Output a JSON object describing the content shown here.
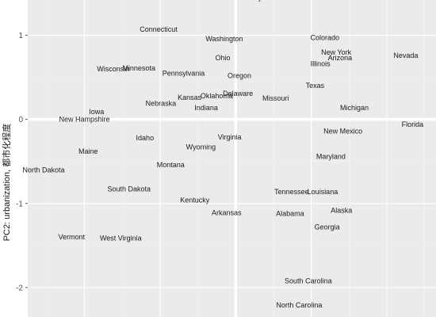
{
  "chart_data": {
    "type": "scatter",
    "title": "",
    "xlabel": "",
    "ylabel": "PC2: urbanization, 都市化程度",
    "xlim": [
      -2.75,
      2.65
    ],
    "ylim": [
      -2.35,
      1.42
    ],
    "yticks": [
      1,
      0,
      -1,
      -2
    ],
    "ytick_labels": [
      "1",
      "0",
      "-1",
      "-2"
    ],
    "x_gridlines": [
      -2,
      -1,
      0,
      1,
      2
    ],
    "x_minor_gridlines": [
      -2.5,
      -1.5,
      -0.5,
      0.5,
      1.5,
      2.5
    ],
    "y_minor_gridlines": [
      1.5,
      0.5,
      -0.5,
      -1.5
    ],
    "zero_lines": true,
    "grid": true,
    "background": "#ebebeb",
    "gridline_color": "#ffffff",
    "points": [
      {
        "label": "New Jersey",
        "x": 0.1,
        "y": 1.45
      },
      {
        "label": "Connecticut",
        "x": -1.02,
        "y": 1.07
      },
      {
        "label": "Washington",
        "x": -0.15,
        "y": 0.96
      },
      {
        "label": "Colorado",
        "x": 1.18,
        "y": 0.97
      },
      {
        "label": "New York",
        "x": 1.33,
        "y": 0.8
      },
      {
        "label": "Arizona",
        "x": 1.38,
        "y": 0.73
      },
      {
        "label": "Nevada",
        "x": 2.25,
        "y": 0.76
      },
      {
        "label": "Ohio",
        "x": -0.17,
        "y": 0.73
      },
      {
        "label": "Illinois",
        "x": 1.12,
        "y": 0.66
      },
      {
        "label": "Wisconsin",
        "x": -1.62,
        "y": 0.6
      },
      {
        "label": "Minnesota",
        "x": -1.28,
        "y": 0.61
      },
      {
        "label": "Pennsylvania",
        "x": -0.69,
        "y": 0.55
      },
      {
        "label": "Oregon",
        "x": 0.05,
        "y": 0.52
      },
      {
        "label": "Texas",
        "x": 1.05,
        "y": 0.4
      },
      {
        "label": "Delaware",
        "x": 0.03,
        "y": 0.31
      },
      {
        "label": "Oklahoma",
        "x": -0.25,
        "y": 0.28
      },
      {
        "label": "Kansas",
        "x": -0.61,
        "y": 0.26
      },
      {
        "label": "Missouri",
        "x": 0.53,
        "y": 0.25
      },
      {
        "label": "Nebraska",
        "x": -0.99,
        "y": 0.19
      },
      {
        "label": "Indiana",
        "x": -0.39,
        "y": 0.14
      },
      {
        "label": "Michigan",
        "x": 1.57,
        "y": 0.14
      },
      {
        "label": "Iowa",
        "x": -1.84,
        "y": 0.09
      },
      {
        "label": "New Hampshire",
        "x": -2.0,
        "y": 0.0
      },
      {
        "label": "Florida",
        "x": 2.34,
        "y": -0.06
      },
      {
        "label": "New Mexico",
        "x": 1.42,
        "y": -0.14
      },
      {
        "label": "Virginia",
        "x": -0.08,
        "y": -0.21
      },
      {
        "label": "Idaho",
        "x": -1.2,
        "y": -0.22
      },
      {
        "label": "Wyoming",
        "x": -0.46,
        "y": -0.33
      },
      {
        "label": "Maine",
        "x": -1.95,
        "y": -0.38
      },
      {
        "label": "Maryland",
        "x": 1.26,
        "y": -0.44
      },
      {
        "label": "Montana",
        "x": -0.86,
        "y": -0.54
      },
      {
        "label": "North Dakota",
        "x": -2.54,
        "y": -0.6
      },
      {
        "label": "South Dakota",
        "x": -1.41,
        "y": -0.83
      },
      {
        "label": "Tennessee",
        "x": 0.74,
        "y": -0.86
      },
      {
        "label": "Louisiana",
        "x": 1.15,
        "y": -0.86
      },
      {
        "label": "Kentucky",
        "x": -0.54,
        "y": -0.96
      },
      {
        "label": "Alaska",
        "x": 1.4,
        "y": -1.08
      },
      {
        "label": "Arkansas",
        "x": -0.12,
        "y": -1.11
      },
      {
        "label": "Alabama",
        "x": 0.72,
        "y": -1.12
      },
      {
        "label": "Georgia",
        "x": 1.21,
        "y": -1.28
      },
      {
        "label": "Vermont",
        "x": -2.17,
        "y": -1.4
      },
      {
        "label": "West Virginia",
        "x": -1.52,
        "y": -1.41
      },
      {
        "label": "South Carolina",
        "x": 0.96,
        "y": -1.92
      },
      {
        "label": "North Carolina",
        "x": 0.84,
        "y": -2.21
      }
    ]
  }
}
